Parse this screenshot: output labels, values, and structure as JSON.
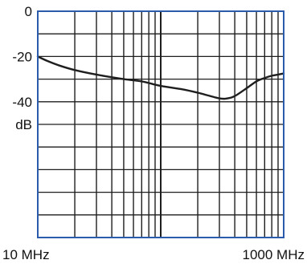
{
  "chart_data": {
    "type": "line",
    "x_scale": "log",
    "xlim": [
      10,
      1000
    ],
    "ylim": [
      -100,
      0
    ],
    "y_invert": true,
    "y_gridlines": [
      0,
      -10,
      -20,
      -30,
      -40,
      -50,
      -60,
      -70,
      -80,
      -90,
      -100
    ],
    "grid": true,
    "ylabel": "dB",
    "xlabel": "",
    "title": "",
    "x_tick_labels": [
      {
        "x": 10,
        "label": "10 MHz"
      },
      {
        "x": 1000,
        "label": "1000 MHz"
      }
    ],
    "y_tick_labels": [
      {
        "y": 0,
        "label": "0"
      },
      {
        "y": -20,
        "label": "-20"
      },
      {
        "y": -40,
        "label": "-40"
      }
    ],
    "series": [
      {
        "x": [
          10,
          12,
          15,
          20,
          30,
          50,
          70,
          100,
          150,
          200,
          300,
          350,
          400,
          500,
          600,
          700,
          800,
          900,
          1000
        ],
        "y": [
          -20,
          -22,
          -24,
          -26,
          -28,
          -30,
          -31,
          -33,
          -34.5,
          -36,
          -38.5,
          -38.5,
          -37.5,
          -34,
          -31,
          -29.5,
          -28.5,
          -28,
          -27.5
        ]
      }
    ],
    "colors": {
      "line": "#1e1e1e",
      "grid": "#1e1e1e",
      "frame": "#2a5cab",
      "text": "#111111"
    }
  }
}
